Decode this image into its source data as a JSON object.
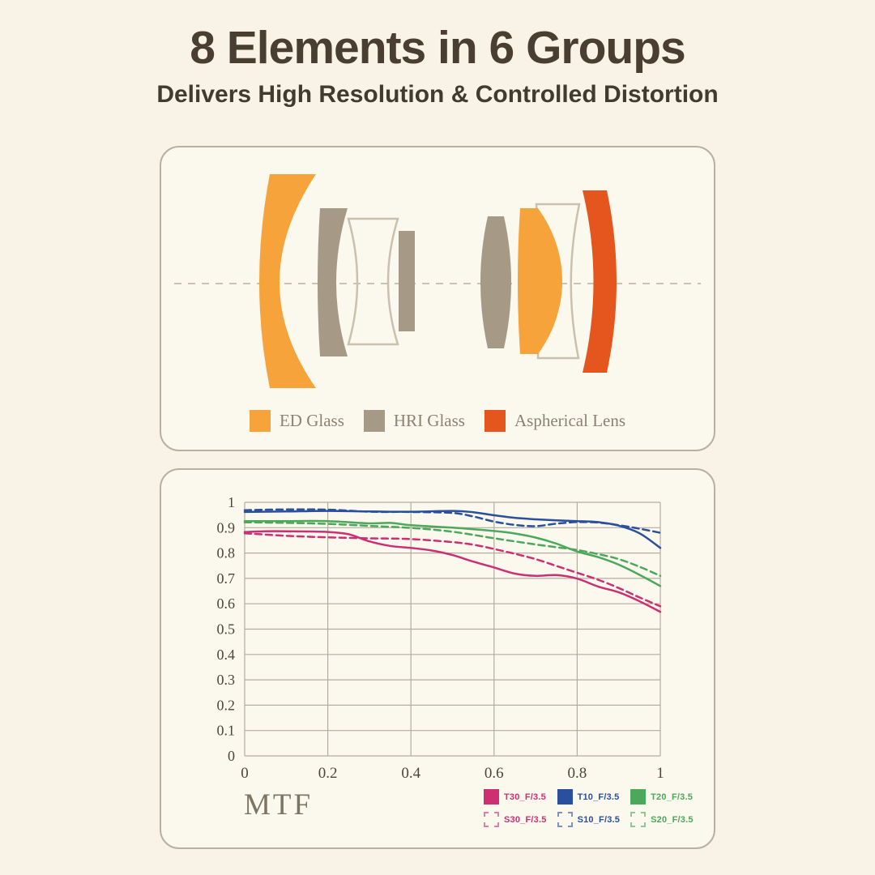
{
  "header": {
    "title": "8 Elements in 6 Groups",
    "subtitle": "Delivers High Resolution & Controlled Distortion"
  },
  "lens": {
    "colors": {
      "ed": "#f7a33b",
      "hri": "#a69a87",
      "asph": "#e4561d",
      "outline": "#c9c0ad",
      "axis": "#c9c3b3"
    },
    "legend": [
      {
        "key": "ed",
        "label": "ED Glass"
      },
      {
        "key": "hri",
        "label": "HRI Glass"
      },
      {
        "key": "asph",
        "label": "Aspherical Lens"
      }
    ],
    "element_count": 8,
    "group_count": 6
  },
  "chart_data": {
    "type": "line",
    "title": "MTF",
    "xlabel": "",
    "ylabel": "",
    "xlim": [
      0,
      1
    ],
    "ylim": [
      0,
      1
    ],
    "grid": true,
    "legend_position": "bottom-right",
    "grid_color": "#b3ad9e",
    "tick_color": "#4c463c",
    "x_ticks": [
      {
        "v": 0,
        "label": "0"
      },
      {
        "v": 0.2,
        "label": "0.2"
      },
      {
        "v": 0.4,
        "label": "0.4"
      },
      {
        "v": 0.6,
        "label": "0.6"
      },
      {
        "v": 0.8,
        "label": "0.8"
      },
      {
        "v": 1,
        "label": "1"
      }
    ],
    "y_ticks": [
      {
        "v": 0,
        "label": "0"
      },
      {
        "v": 0.1,
        "label": "0.1"
      },
      {
        "v": 0.2,
        "label": "0.2"
      },
      {
        "v": 0.3,
        "label": "0.3"
      },
      {
        "v": 0.4,
        "label": "0.4"
      },
      {
        "v": 0.5,
        "label": "0.5"
      },
      {
        "v": 0.6,
        "label": "0.6"
      },
      {
        "v": 0.7,
        "label": "0.7"
      },
      {
        "v": 0.8,
        "label": "0.8"
      },
      {
        "v": 0.9,
        "label": "0.9"
      },
      {
        "v": 1,
        "label": "1"
      }
    ],
    "series": [
      {
        "name": "T30_F/3.5",
        "color": "#ce2f72",
        "style": "solid",
        "points": [
          [
            0,
            0.883
          ],
          [
            0.05,
            0.886
          ],
          [
            0.1,
            0.886
          ],
          [
            0.15,
            0.885
          ],
          [
            0.2,
            0.883
          ],
          [
            0.25,
            0.874
          ],
          [
            0.3,
            0.846
          ],
          [
            0.35,
            0.828
          ],
          [
            0.4,
            0.82
          ],
          [
            0.45,
            0.81
          ],
          [
            0.5,
            0.792
          ],
          [
            0.55,
            0.766
          ],
          [
            0.6,
            0.743
          ],
          [
            0.65,
            0.719
          ],
          [
            0.7,
            0.71
          ],
          [
            0.75,
            0.713
          ],
          [
            0.8,
            0.699
          ],
          [
            0.85,
            0.668
          ],
          [
            0.9,
            0.645
          ],
          [
            0.95,
            0.61
          ],
          [
            1,
            0.568
          ]
        ]
      },
      {
        "name": "T10_F/3.5",
        "color": "#2a4f9d",
        "style": "solid",
        "points": [
          [
            0,
            0.962
          ],
          [
            0.1,
            0.964
          ],
          [
            0.2,
            0.966
          ],
          [
            0.3,
            0.964
          ],
          [
            0.4,
            0.963
          ],
          [
            0.5,
            0.966
          ],
          [
            0.55,
            0.961
          ],
          [
            0.6,
            0.949
          ],
          [
            0.65,
            0.939
          ],
          [
            0.7,
            0.933
          ],
          [
            0.75,
            0.929
          ],
          [
            0.8,
            0.926
          ],
          [
            0.85,
            0.922
          ],
          [
            0.9,
            0.908
          ],
          [
            0.95,
            0.878
          ],
          [
            1,
            0.82
          ]
        ]
      },
      {
        "name": "T20_F/3.5",
        "color": "#4ca85a",
        "style": "solid",
        "points": [
          [
            0,
            0.926
          ],
          [
            0.1,
            0.926
          ],
          [
            0.2,
            0.926
          ],
          [
            0.3,
            0.917
          ],
          [
            0.35,
            0.919
          ],
          [
            0.4,
            0.91
          ],
          [
            0.5,
            0.9
          ],
          [
            0.6,
            0.887
          ],
          [
            0.65,
            0.877
          ],
          [
            0.7,
            0.861
          ],
          [
            0.75,
            0.837
          ],
          [
            0.8,
            0.806
          ],
          [
            0.85,
            0.784
          ],
          [
            0.9,
            0.754
          ],
          [
            0.95,
            0.714
          ],
          [
            1,
            0.67
          ]
        ]
      },
      {
        "name": "S30_F/3.5",
        "color": "#ce2f72",
        "style": "dashed",
        "points": [
          [
            0,
            0.878
          ],
          [
            0.1,
            0.868
          ],
          [
            0.2,
            0.862
          ],
          [
            0.3,
            0.858
          ],
          [
            0.4,
            0.855
          ],
          [
            0.5,
            0.843
          ],
          [
            0.55,
            0.833
          ],
          [
            0.6,
            0.816
          ],
          [
            0.65,
            0.797
          ],
          [
            0.7,
            0.776
          ],
          [
            0.75,
            0.749
          ],
          [
            0.8,
            0.722
          ],
          [
            0.85,
            0.695
          ],
          [
            0.9,
            0.662
          ],
          [
            0.95,
            0.625
          ],
          [
            1,
            0.59
          ]
        ]
      },
      {
        "name": "S10_F/3.5",
        "color": "#2a4f9d",
        "style": "dashed",
        "points": [
          [
            0,
            0.969
          ],
          [
            0.1,
            0.972
          ],
          [
            0.2,
            0.971
          ],
          [
            0.3,
            0.963
          ],
          [
            0.4,
            0.962
          ],
          [
            0.5,
            0.958
          ],
          [
            0.55,
            0.944
          ],
          [
            0.6,
            0.924
          ],
          [
            0.65,
            0.911
          ],
          [
            0.7,
            0.906
          ],
          [
            0.75,
            0.916
          ],
          [
            0.8,
            0.922
          ],
          [
            0.85,
            0.92
          ],
          [
            0.9,
            0.91
          ],
          [
            0.95,
            0.896
          ],
          [
            1,
            0.88
          ]
        ]
      },
      {
        "name": "S20_F/3.5",
        "color": "#4ca85a",
        "style": "dashed",
        "points": [
          [
            0,
            0.921
          ],
          [
            0.1,
            0.919
          ],
          [
            0.2,
            0.915
          ],
          [
            0.3,
            0.907
          ],
          [
            0.4,
            0.899
          ],
          [
            0.5,
            0.884
          ],
          [
            0.6,
            0.858
          ],
          [
            0.65,
            0.846
          ],
          [
            0.7,
            0.834
          ],
          [
            0.75,
            0.823
          ],
          [
            0.8,
            0.812
          ],
          [
            0.85,
            0.796
          ],
          [
            0.9,
            0.776
          ],
          [
            0.95,
            0.746
          ],
          [
            1,
            0.71
          ]
        ]
      }
    ],
    "legend_order": [
      "T30_F/3.5",
      "T10_F/3.5",
      "T20_F/3.5",
      "S30_F/3.5",
      "S10_F/3.5",
      "S20_F/3.5"
    ]
  }
}
